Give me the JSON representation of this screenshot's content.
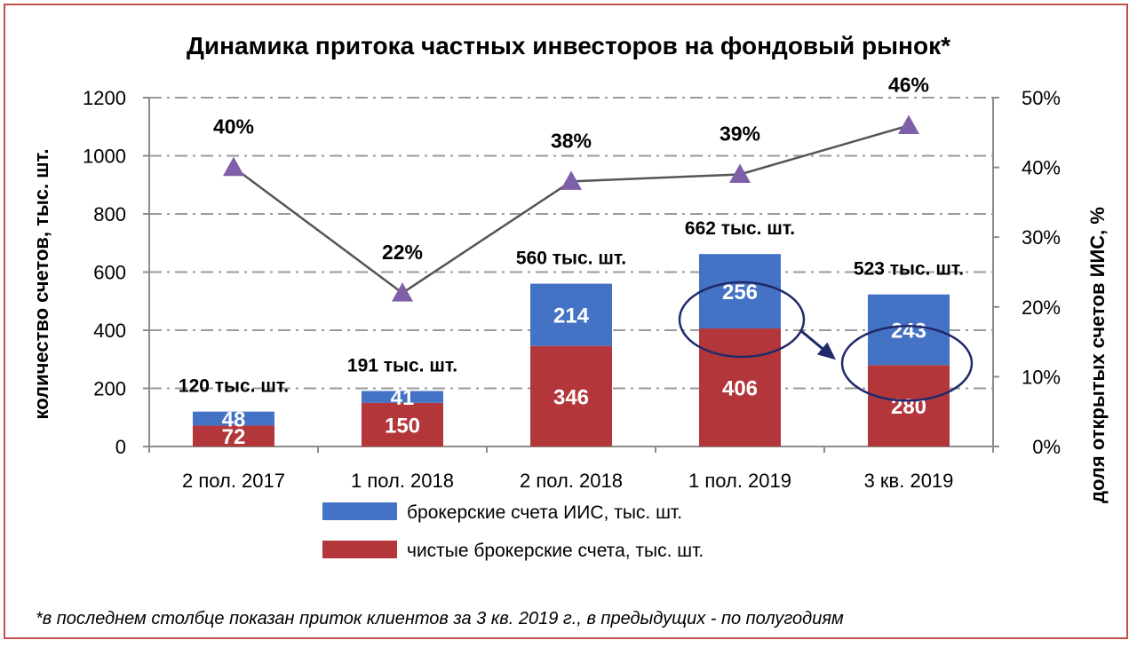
{
  "chart_data": {
    "type": "bar",
    "title": "Динамика притока частных инвесторов на фондовый рынок*",
    "footnote": "*в последнем столбце показан приток клиентов за 3 кв. 2019 г., в предыдущих - по полугодиям",
    "categories": [
      "2 пол. 2017",
      "1 пол. 2018",
      "2 пол. 2018",
      "1 пол. 2019",
      "3 кв. 2019"
    ],
    "ylabel": "количество счетов, тыс. шт.",
    "y2label": "доля открытых счетов ИИС, %",
    "ylim": [
      0,
      1200
    ],
    "yticks": [
      "0",
      "200",
      "400",
      "600",
      "800",
      "1000",
      "1200"
    ],
    "y2lim": [
      0,
      50
    ],
    "y2ticks": [
      "0%",
      "10%",
      "20%",
      "30%",
      "40%",
      "50%"
    ],
    "stacked": true,
    "series": [
      {
        "name": "чистые брокерские счета, тыс. шт.",
        "values": [
          72,
          150,
          346,
          406,
          280
        ],
        "labels": [
          "72",
          "150",
          "346",
          "406",
          "280"
        ],
        "color": "#b3373a"
      },
      {
        "name": "брокерские счета ИИС, тыс. шт.",
        "values": [
          48,
          41,
          214,
          256,
          243
        ],
        "labels": [
          "48",
          "41",
          "214",
          "256",
          "243"
        ],
        "color": "#4472c4"
      }
    ],
    "totals": [
      "120 тыс. шт.",
      "191 тыс. шт.",
      "560 тыс. шт.",
      "662 тыс. шт.",
      "523 тыс. шт."
    ],
    "line": {
      "axis": "right",
      "values": [
        40,
        22,
        38,
        39,
        46
      ],
      "labels": [
        "40%",
        "22%",
        "38%",
        "39%",
        "46%"
      ],
      "color": "#555555",
      "marker": "triangle",
      "marker_color": "#7f5fa8"
    },
    "legend_order": [
      1,
      0
    ],
    "grid": true,
    "annotation": {
      "circles": [
        "1 пол. 2019",
        "3 кв. 2019"
      ],
      "arrow": true,
      "color": "#1f2a6b"
    }
  }
}
